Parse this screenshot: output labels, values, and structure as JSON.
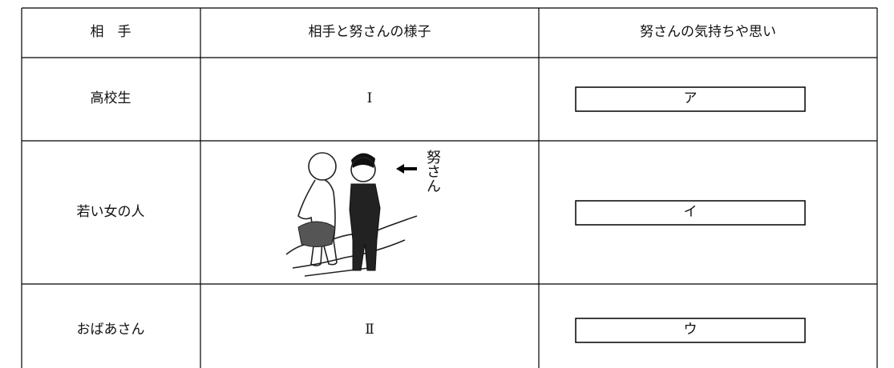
{
  "table": {
    "header": [
      "相　手",
      "相手と努さんの様子",
      "努さんの気持ちや思い"
    ],
    "rows": [
      {
        "partner": "高校生",
        "situation": "Ⅰ",
        "feeling": "ア"
      },
      {
        "partner": "若い女の人",
        "illustration_label": "努さん",
        "feeling": "イ"
      },
      {
        "partner": "おばあさん",
        "situation": "Ⅱ",
        "feeling": "ウ"
      }
    ]
  }
}
